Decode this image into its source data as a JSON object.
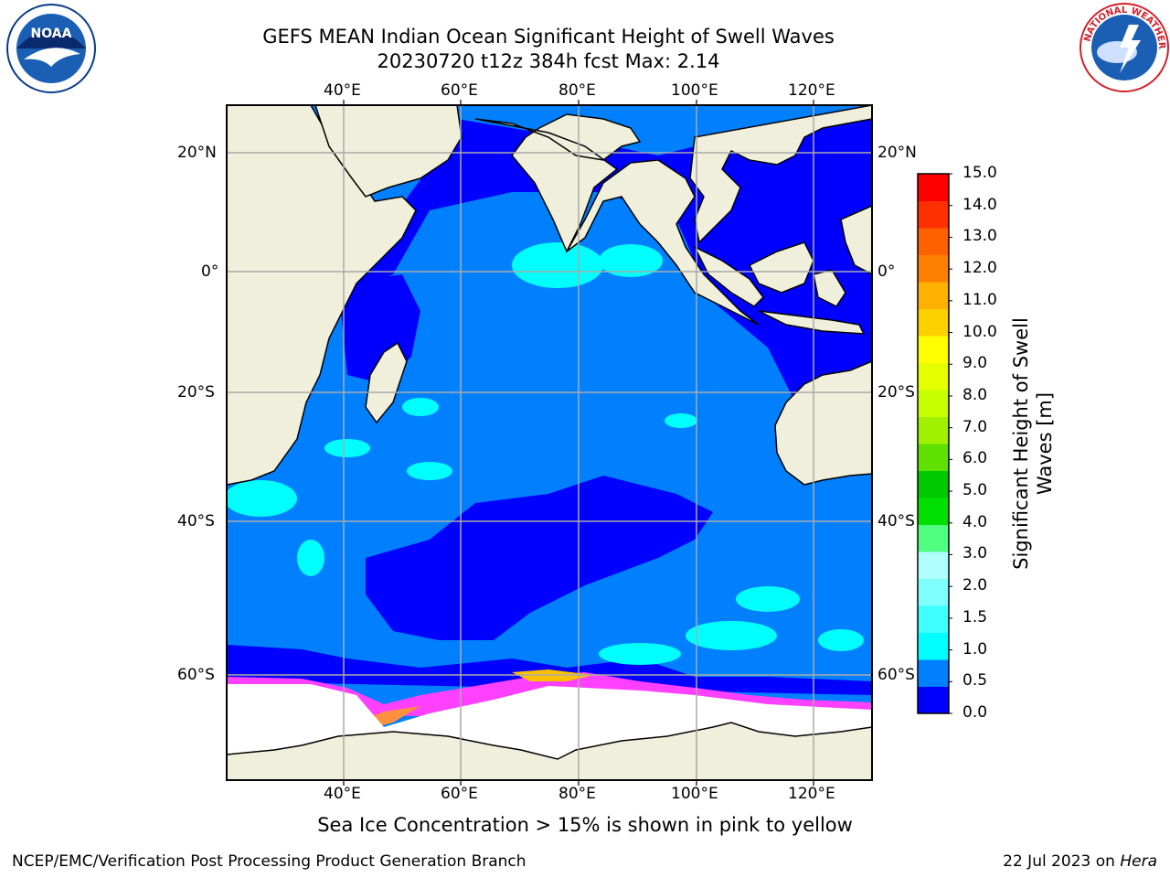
{
  "title": {
    "line1": "GEFS MEAN Indian Ocean Significant Height of Swell Waves",
    "line2": "20230720 t12z 384h fcst   Max: 2.14"
  },
  "logos": {
    "left": "noaa-logo",
    "right": "national-weather-service-logo"
  },
  "map": {
    "lon_labels": [
      "40°E",
      "60°E",
      "80°E",
      "100°E",
      "120°E"
    ],
    "lat_labels": [
      "20°N",
      "0°",
      "20°S",
      "40°S",
      "60°S"
    ],
    "colors": {
      "land": "#efefdc",
      "ocean_low": "#0000fe",
      "ocean_mid": "#0080ff",
      "ocean_high": "#00ffff",
      "ice": "#ffffff",
      "grid": "#aaaaaa"
    }
  },
  "colorbar": {
    "title": "Significant Height of Swell Waves [m]",
    "ticks": [
      "15.0",
      "14.0",
      "13.0",
      "12.0",
      "11.0",
      "10.0",
      "9.0",
      "8.0",
      "7.0",
      "6.0",
      "5.0",
      "4.0",
      "3.0",
      "2.0",
      "1.5",
      "1.0",
      "0.5",
      "0.0"
    ],
    "colors": [
      "#0000ff",
      "#0080ff",
      "#00ffff",
      "#40ffff",
      "#80ffff",
      "#b0ffff",
      "#50ff80",
      "#00e000",
      "#00c800",
      "#60e000",
      "#a0f000",
      "#c8ff00",
      "#e6ff00",
      "#ffff00",
      "#ffd000",
      "#ffb000",
      "#ff8000",
      "#ff6000",
      "#ff3000",
      "#ff0000"
    ]
  },
  "caption": "Sea Ice Concentration > 15% is shown in pink to yellow",
  "footer": {
    "left": "NCEP/EMC/Verification Post Processing Product Generation Branch",
    "right_date": "22 Jul 2023 on ",
    "right_host": "Hera"
  }
}
